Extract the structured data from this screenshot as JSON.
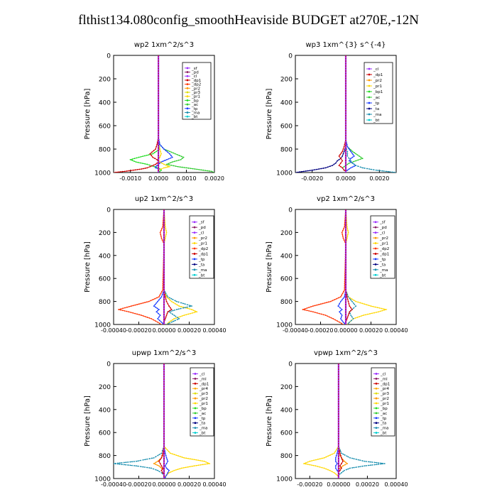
{
  "page_title": "flthist134.080config_smoothHeaviside  BUDGET at270E,-12N",
  "series_colors": {
    "_sf": "#9b30ff",
    "_pd": "#8b1c62",
    "_cl": "#9b30ff",
    "_ml": "#8b1c62",
    "_dp1": "#cc0000",
    "_dp2": "#ff3300",
    "_dp3": "#dd2200",
    "_dp4": "#cc0000",
    "_pr1": "#ffd700",
    "_pr2": "#ff9900",
    "_pr3": "#dddd00",
    "_pr4": "#ffaa00",
    "_bp": "#22dd22",
    "_bp1": "#22dd22",
    "_ac": "#33cc33",
    "_tp": "#1a3cff",
    "_ta": "#000080",
    "_ma": "#1e90b0",
    "_bt": "#00ced1"
  },
  "chart_data": [
    {
      "type": "line",
      "title": "wp2   1xm^2/s^3",
      "ylabel": "Pressure  [hPa]",
      "xlim": [
        -0.0016,
        0.002
      ],
      "ylim": [
        1000,
        0
      ],
      "xticks": [
        -0.001,
        0.0,
        0.001,
        0.002
      ],
      "xtick_labels": [
        "-0.0010",
        "0.0000",
        "0.0010",
        "0.0020"
      ],
      "yticks": [
        0,
        200,
        400,
        600,
        800,
        1000
      ],
      "ytick_labels": [
        "0",
        "200",
        "400",
        "600",
        "800",
        "1000"
      ],
      "legend": [
        "_sf",
        "_pd",
        "_cl",
        "_dp1",
        "_dp2",
        "_pr2",
        "_pr3",
        "_pr1",
        "_bp",
        "_ac",
        "_tp",
        "_ma",
        "_bt"
      ],
      "pressure": [
        0,
        700,
        760,
        800,
        840,
        870,
        890,
        910,
        930,
        950,
        960,
        970,
        980,
        990,
        1000
      ],
      "series": [
        {
          "name": "_bp",
          "values": [
            0,
            0,
            2e-05,
            5e-05,
            -0.0002,
            -0.0007,
            -0.001,
            -0.0008,
            -0.0004,
            -0.00015,
            0,
            5e-05,
            0.0001,
            5e-05,
            0
          ]
        },
        {
          "name": "_ac",
          "values": [
            0,
            0,
            5e-05,
            0.0002,
            0.0006,
            0.0009,
            0.0008,
            0.0005,
            0.0003,
            0.0007,
            0.001,
            0.0013,
            0.0016,
            0.0019,
            0.002
          ]
        },
        {
          "name": "_tp",
          "values": [
            0,
            0,
            5e-05,
            0.0002,
            0.0004,
            0.0005,
            0.0003,
            0.0001,
            0,
            -0.0001,
            -0.0001,
            0,
            0,
            0,
            0
          ]
        },
        {
          "name": "_dp1",
          "values": [
            0,
            0,
            -5e-05,
            -0.0001,
            -0.0003,
            -0.0002,
            -5e-05,
            0,
            -0.0001,
            -0.0003,
            -0.0004,
            -0.0006,
            -0.0009,
            -0.0012,
            -0.0016
          ]
        },
        {
          "name": "_pr1",
          "values": [
            0,
            0,
            0,
            5e-05,
            0.0001,
            5e-05,
            0,
            5e-05,
            0.0002,
            0.0004,
            0.0002,
            0.0001,
            0,
            0,
            0
          ]
        },
        {
          "name": "_sf",
          "values": [
            0,
            0,
            0,
            0,
            0,
            0,
            0,
            0,
            0,
            0,
            0,
            0,
            0,
            0,
            0
          ]
        }
      ]
    },
    {
      "type": "line",
      "title": "wp3   1xm^{3} s^{-4}",
      "ylabel": "Pressure  [hPa]",
      "xlim": [
        -0.003,
        0.003
      ],
      "ylim": [
        1000,
        0
      ],
      "xticks": [
        -0.002,
        0.0,
        0.002
      ],
      "xtick_labels": [
        "-0.0020",
        "0.0000",
        "0.0020"
      ],
      "yticks": [
        0,
        200,
        400,
        600,
        800,
        1000
      ],
      "ytick_labels": [
        "0",
        "200",
        "400",
        "600",
        "800",
        "1000"
      ],
      "legend": [
        "_cl",
        "_dp1",
        "_pr2",
        "_pr1",
        "_bp1",
        "_ac",
        "_tp",
        "_ta",
        "_ma",
        "_bt"
      ],
      "pressure": [
        0,
        720,
        780,
        820,
        860,
        880,
        900,
        920,
        940,
        960,
        980,
        990,
        1000
      ],
      "series": [
        {
          "name": "_ac",
          "values": [
            0,
            0,
            0.0001,
            0.0004,
            0.0008,
            0.001,
            0.0006,
            0.0002,
            0,
            -0.0002,
            -0.0001,
            0,
            0
          ]
        },
        {
          "name": "_tp",
          "values": [
            0,
            0,
            0.0001,
            0.0003,
            0.0005,
            0.0003,
            0.0002,
            0.0004,
            0.0006,
            0.0003,
            0.0001,
            0,
            0
          ]
        },
        {
          "name": "_ta",
          "values": [
            0,
            0,
            0,
            -0.0001,
            -0.0002,
            -0.0003,
            -0.0005,
            -0.0006,
            -0.0008,
            -0.0012,
            -0.002,
            -0.0025,
            -0.003
          ]
        },
        {
          "name": "_ma",
          "values": [
            0,
            0,
            0,
            0.0001,
            0.0001,
            0.0002,
            0.0003,
            0.0004,
            0.0006,
            0.001,
            0.0018,
            0.0024,
            0.003
          ]
        },
        {
          "name": "_dp1",
          "values": [
            0,
            0,
            -0.0001,
            -0.0002,
            -0.0004,
            -0.0003,
            -0.0002,
            -0.0003,
            -0.0004,
            -0.0002,
            -0.0001,
            0,
            0
          ]
        },
        {
          "name": "_cl",
          "values": [
            0,
            0,
            0,
            0,
            0,
            0,
            0,
            0,
            0,
            0,
            0,
            0,
            0
          ]
        }
      ]
    },
    {
      "type": "line",
      "title": "up2   1xm^2/s^3",
      "ylabel": "Pressure  [hPa]",
      "xlim": [
        -0.0004,
        0.0004
      ],
      "ylim": [
        1000,
        0
      ],
      "xticks": [
        -0.0004,
        -0.0002,
        0.0,
        0.0002,
        0.0004
      ],
      "xtick_labels": [
        "-0.00040",
        "-0.00020",
        "0.00000",
        "0.00020",
        "0.00040"
      ],
      "yticks": [
        0,
        200,
        400,
        600,
        800,
        1000
      ],
      "ytick_labels": [
        "0",
        "200",
        "400",
        "600",
        "800",
        "1000"
      ],
      "legend": [
        "_sf",
        "_pd",
        "_cl",
        "_pr2",
        "_pr1",
        "_dp2",
        "_dp1",
        "_tp",
        "_ta",
        "_ma",
        "_bt"
      ],
      "pressure": [
        0,
        150,
        200,
        250,
        300,
        700,
        760,
        800,
        840,
        870,
        890,
        920,
        950,
        980,
        1000
      ],
      "series": [
        {
          "name": "_dp2",
          "values": [
            0,
            -1e-05,
            -3e-05,
            -2e-05,
            0,
            -1e-05,
            -4e-05,
            -0.00012,
            -0.00026,
            -0.00036,
            -0.00028,
            -0.00018,
            -0.0001,
            -5e-05,
            -2e-05
          ]
        },
        {
          "name": "_pr1",
          "values": [
            0,
            1e-05,
            2e-05,
            1e-05,
            0,
            0,
            2e-05,
            6e-05,
            0.00012,
            0.00022,
            0.00026,
            0.00016,
            8e-05,
            4e-05,
            2e-05
          ]
        },
        {
          "name": "_ma",
          "values": [
            0,
            0,
            0,
            0,
            0,
            0,
            3e-05,
            0.0001,
            0.00022,
            0.0001,
            4e-05,
            8e-05,
            0.00012,
            6e-05,
            2e-05
          ]
        },
        {
          "name": "_tp",
          "values": [
            0,
            0,
            0,
            0,
            0,
            0,
            -2e-05,
            -5e-05,
            -8e-05,
            -4e-05,
            -6e-05,
            -3e-05,
            -5e-05,
            -2e-05,
            0
          ]
        },
        {
          "name": "_dp1",
          "values": [
            0,
            0,
            0,
            0,
            0,
            0,
            1e-05,
            2e-05,
            4e-05,
            6e-05,
            3e-05,
            2e-05,
            1e-05,
            0,
            0
          ]
        },
        {
          "name": "_sf",
          "values": [
            0,
            0,
            0,
            0,
            0,
            0,
            0,
            0,
            0,
            0,
            0,
            0,
            0,
            0,
            0
          ]
        }
      ]
    },
    {
      "type": "line",
      "title": "vp2   1xm^2/s^3",
      "ylabel": "Pressure  [hPa]",
      "xlim": [
        -0.0004,
        0.0004
      ],
      "ylim": [
        1000,
        0
      ],
      "xticks": [
        -0.0004,
        -0.0002,
        0.0,
        0.0002,
        0.0004
      ],
      "xtick_labels": [
        "-0.00040",
        "-0.00020",
        "0.00000",
        "0.00020",
        "0.00040"
      ],
      "yticks": [
        0,
        200,
        400,
        600,
        800,
        1000
      ],
      "ytick_labels": [
        "0",
        "200",
        "400",
        "600",
        "800",
        "1000"
      ],
      "legend": [
        "_sf",
        "_pd",
        "_cl",
        "_pr2",
        "_pr1",
        "_dp2",
        "_dp1",
        "_tp",
        "_ta",
        "_ma",
        "_bt"
      ],
      "pressure": [
        0,
        150,
        200,
        250,
        300,
        700,
        760,
        800,
        840,
        870,
        890,
        920,
        950,
        980,
        1000
      ],
      "series": [
        {
          "name": "_dp2",
          "values": [
            0,
            -1e-05,
            -3e-05,
            -2e-05,
            0,
            -1e-05,
            -4e-05,
            -0.00012,
            -0.00026,
            -0.00034,
            -0.00026,
            -0.00016,
            -0.0001,
            -5e-05,
            -2e-05
          ]
        },
        {
          "name": "_pr1",
          "values": [
            0,
            1e-05,
            2e-05,
            1e-05,
            0,
            0,
            2e-05,
            8e-05,
            0.0002,
            0.00032,
            0.00026,
            0.00014,
            6e-05,
            3e-05,
            1e-05
          ]
        },
        {
          "name": "_ma",
          "values": [
            0,
            0,
            0,
            0,
            0,
            0,
            2e-05,
            5e-05,
            8e-05,
            5e-05,
            3e-05,
            4e-05,
            6e-05,
            3e-05,
            1e-05
          ]
        },
        {
          "name": "_tp",
          "values": [
            0,
            0,
            0,
            0,
            0,
            0,
            -1e-05,
            -4e-05,
            -6e-05,
            -3e-05,
            -5e-05,
            -3e-05,
            -4e-05,
            -2e-05,
            0
          ]
        },
        {
          "name": "_dp1",
          "values": [
            0,
            0,
            0,
            0,
            0,
            0,
            1e-05,
            2e-05,
            3e-05,
            5e-05,
            3e-05,
            2e-05,
            1e-05,
            0,
            0
          ]
        },
        {
          "name": "_sf",
          "values": [
            0,
            0,
            0,
            0,
            0,
            0,
            0,
            0,
            0,
            0,
            0,
            0,
            0,
            0,
            0
          ]
        }
      ]
    },
    {
      "type": "line",
      "title": "upwp   1xm^2/s^3",
      "ylabel": "Pressure  [hPa]",
      "xlim": [
        -0.0004,
        0.0004
      ],
      "ylim": [
        1000,
        0
      ],
      "xticks": [
        -0.0004,
        -0.0002,
        0.0,
        0.0002,
        0.0004
      ],
      "xtick_labels": [
        "-0.00040",
        "-0.00020",
        "0.00000",
        "0.00020",
        "0.00040"
      ],
      "yticks": [
        0,
        200,
        400,
        600,
        800,
        1000
      ],
      "ytick_labels": [
        "0",
        "200",
        "400",
        "600",
        "800",
        "1000"
      ],
      "legend": [
        "_cl",
        "_ml",
        "_dp1",
        "_pr4",
        "_pr3",
        "_pr2",
        "_pr1",
        "_bp",
        "_ac",
        "_tp",
        "_ta",
        "_ma",
        "_bt"
      ],
      "pressure": [
        0,
        720,
        780,
        820,
        850,
        870,
        890,
        910,
        930,
        950,
        970,
        990,
        1000
      ],
      "series": [
        {
          "name": "_ma",
          "values": [
            0,
            0,
            -2e-05,
            -8e-05,
            -0.00022,
            -0.0004,
            -0.00022,
            -0.0001,
            -5e-05,
            -2e-05,
            0,
            0,
            0
          ]
        },
        {
          "name": "_pr1",
          "values": [
            0,
            0,
            5e-05,
            0.00016,
            0.00032,
            0.00036,
            0.00024,
            0.00014,
            8e-05,
            4e-05,
            2e-05,
            0,
            0
          ]
        },
        {
          "name": "_pr2",
          "values": [
            0,
            0,
            0,
            -2e-05,
            -5e-05,
            -8e-05,
            -4e-05,
            -2e-05,
            0,
            0,
            0,
            0,
            0
          ]
        },
        {
          "name": "_dp1",
          "values": [
            0,
            0,
            -1e-05,
            -2e-05,
            -4e-05,
            -3e-05,
            -2e-05,
            -1e-05,
            -2e-05,
            -1e-05,
            0,
            0,
            0
          ]
        },
        {
          "name": "_tp",
          "values": [
            0,
            0,
            1e-05,
            2e-05,
            3e-05,
            2e-05,
            1e-05,
            2e-05,
            4e-05,
            3e-05,
            2e-05,
            1e-05,
            0
          ]
        },
        {
          "name": "_cl",
          "values": [
            0,
            0,
            0,
            0,
            0,
            0,
            0,
            0,
            0,
            0,
            0,
            0,
            0
          ]
        }
      ]
    },
    {
      "type": "line",
      "title": "vpwp   1xm^2/s^3",
      "ylabel": "Pressure  [hPa]",
      "xlim": [
        -0.0003,
        0.0004
      ],
      "ylim": [
        1000,
        0
      ],
      "xticks": [
        -0.0002,
        0.0,
        0.0002,
        0.0004
      ],
      "xtick_labels": [
        "-0.00020",
        "0.00000",
        "0.00020",
        "0.00040"
      ],
      "yticks": [
        0,
        200,
        400,
        600,
        800,
        1000
      ],
      "ytick_labels": [
        "0",
        "200",
        "400",
        "600",
        "800",
        "1000"
      ],
      "legend": [
        "_cl",
        "_ml",
        "_dp1",
        "_pr4",
        "_pr3",
        "_pr2",
        "_pr1",
        "_bp",
        "_ac",
        "_tp",
        "_ta",
        "_ma",
        "_bt"
      ],
      "pressure": [
        0,
        720,
        780,
        820,
        850,
        870,
        890,
        910,
        930,
        950,
        970,
        990,
        1000
      ],
      "series": [
        {
          "name": "_ma",
          "values": [
            0,
            0,
            2e-05,
            8e-05,
            0.00018,
            0.00032,
            0.00018,
            8e-05,
            4e-05,
            2e-05,
            0,
            0,
            0
          ]
        },
        {
          "name": "_pr1",
          "values": [
            0,
            0,
            -3e-05,
            -0.0001,
            -0.0002,
            -0.00024,
            -0.00016,
            -0.0001,
            -6e-05,
            -3e-05,
            -1e-05,
            0,
            0
          ]
        },
        {
          "name": "_pr2",
          "values": [
            0,
            0,
            0,
            2e-05,
            4e-05,
            6e-05,
            3e-05,
            1e-05,
            0,
            0,
            0,
            0,
            0
          ]
        },
        {
          "name": "_dp1",
          "values": [
            0,
            0,
            1e-05,
            2e-05,
            3e-05,
            2e-05,
            1e-05,
            2e-05,
            1e-05,
            0,
            0,
            0,
            0
          ]
        },
        {
          "name": "_tp",
          "values": [
            0,
            0,
            -1e-05,
            -2e-05,
            -2e-05,
            -1e-05,
            -2e-05,
            -2e-05,
            -1e-05,
            0,
            0,
            0,
            0
          ]
        },
        {
          "name": "_cl",
          "values": [
            0,
            0,
            0,
            0,
            0,
            0,
            0,
            0,
            0,
            0,
            0,
            0,
            0
          ]
        }
      ]
    }
  ]
}
